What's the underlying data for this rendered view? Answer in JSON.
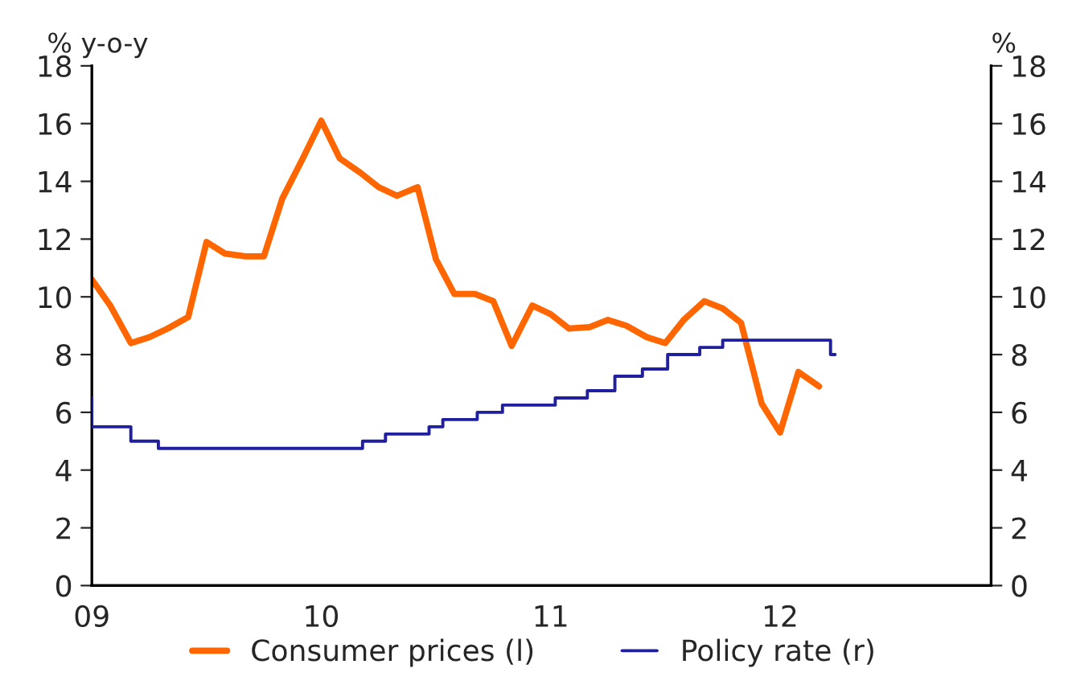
{
  "chart_data": {
    "type": "line",
    "ylabel": "% y-o-y",
    "y2label": "%",
    "xlim": [
      2009,
      2012.92
    ],
    "xticks": [
      {
        "value": 2009,
        "label": "09"
      },
      {
        "value": 2010,
        "label": "10"
      },
      {
        "value": 2011,
        "label": "11"
      },
      {
        "value": 2012,
        "label": "12"
      }
    ],
    "ylim": [
      0,
      18
    ],
    "yticks": [
      0,
      2,
      4,
      6,
      8,
      10,
      12,
      14,
      16,
      18
    ],
    "y2lim": [
      0,
      18
    ],
    "y2ticks": [
      0,
      2,
      4,
      6,
      8,
      10,
      12,
      14,
      16,
      18
    ],
    "grid": false,
    "legend": "bottom",
    "marker": "none",
    "line_style": "solid",
    "series": [
      {
        "name": "Consumer prices (l)",
        "color": "#ff6600",
        "x": [
          2009.0,
          2009.08,
          2009.17,
          2009.25,
          2009.33,
          2009.42,
          2009.5,
          2009.58,
          2009.67,
          2009.75,
          2009.83,
          2009.92,
          2010.0,
          2010.08,
          2010.17,
          2010.25,
          2010.33,
          2010.42,
          2010.5,
          2010.58,
          2010.67,
          2010.75,
          2010.83,
          2010.92,
          2011.0,
          2011.08,
          2011.17,
          2011.25,
          2011.33,
          2011.42,
          2011.5,
          2011.58,
          2011.67,
          2011.75,
          2011.83,
          2011.92,
          2012.0,
          2012.08,
          2012.17
        ],
        "values": [
          10.6,
          9.7,
          8.4,
          8.6,
          8.9,
          9.3,
          11.9,
          11.5,
          11.4,
          11.4,
          13.4,
          14.8,
          16.1,
          14.8,
          14.3,
          13.8,
          13.5,
          13.8,
          11.3,
          10.1,
          10.1,
          9.85,
          8.3,
          9.7,
          9.4,
          8.9,
          8.95,
          9.2,
          9.0,
          8.6,
          8.4,
          9.2,
          9.85,
          9.6,
          9.1,
          6.3,
          5.3,
          7.4,
          6.9
        ]
      },
      {
        "name": "Policy rate (r)",
        "color": "#1f1f9f",
        "type": "step",
        "axis": "y2",
        "x": [
          2009.0,
          2009.0,
          2009.17,
          2009.29,
          2010.18,
          2010.28,
          2010.47,
          2010.53,
          2010.68,
          2010.79,
          2011.02,
          2011.16,
          2011.28,
          2011.4,
          2011.51,
          2011.65,
          2011.75,
          2012.22,
          2012.24
        ],
        "values": [
          6.5,
          5.5,
          5.0,
          4.75,
          5.0,
          5.25,
          5.5,
          5.75,
          6.0,
          6.25,
          6.5,
          6.75,
          7.25,
          7.5,
          8.0,
          8.25,
          8.5,
          8.0,
          8.0
        ]
      }
    ]
  }
}
